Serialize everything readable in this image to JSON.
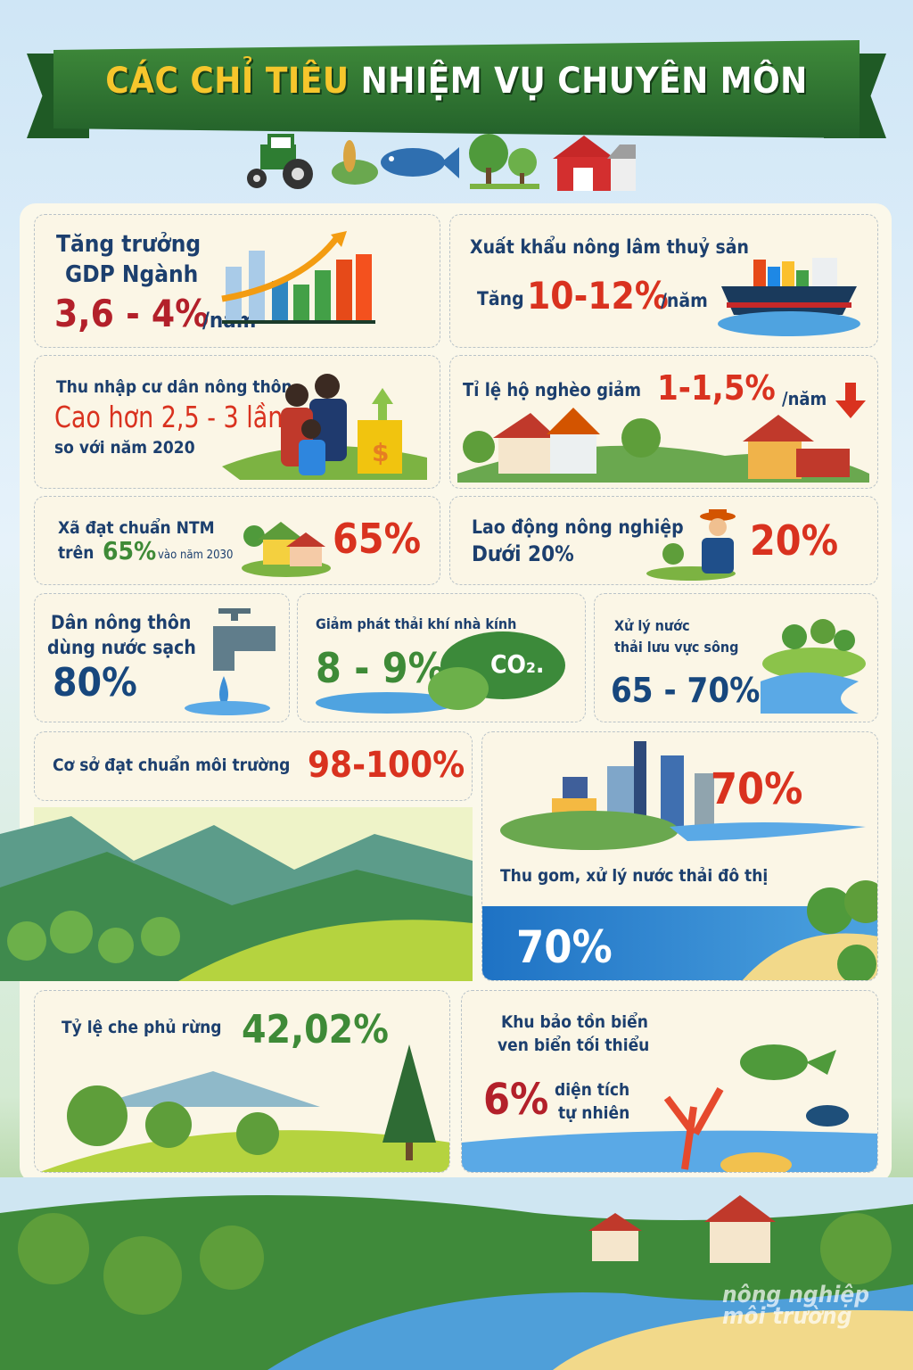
{
  "header": {
    "title_part1": "CÁC CHỈ TIÊU",
    "title_part2": "NHIỆM VỤ CHUYÊN MÔN",
    "icons": [
      "tractor-icon",
      "wheat-leaf-icon",
      "fish-icon",
      "trees-icon",
      "barn-icon"
    ]
  },
  "colors": {
    "banner": "#2f7a33",
    "title_yellow": "#f6c62c",
    "red": "#d9321f",
    "navy": "#1c3f6e",
    "green": "#3e8a37"
  },
  "cards": {
    "gdp": {
      "line1": "Tăng trưởng",
      "line2": "GDP Ngành",
      "value": "3,6 - 4%",
      "unit": "/năm"
    },
    "export": {
      "label": "Xuất khẩu nông lâm thuỷ sản",
      "prefix": "Tăng",
      "value": "10-12%",
      "unit": "/năm"
    },
    "income": {
      "label": "Thu nhập cư dân nông thôn",
      "value": "Cao hơn 2,5 - 3 lần",
      "note": "so với năm 2020"
    },
    "poverty": {
      "label": "Tỉ lệ hộ nghèo giảm",
      "value": "1-1,5%",
      "unit": "/năm"
    },
    "ntm": {
      "line1": "Xã đạt chuẩn NTM",
      "prefix": "trên",
      "value": "65%",
      "suffix": "vào năm 2030",
      "big": "65%"
    },
    "labor": {
      "line1": "Lao động nông nghiệp",
      "line2": "Dưới 20%",
      "big": "20%"
    },
    "water": {
      "line1": "Dân nông thôn",
      "line2": "dùng nước sạch",
      "value": "80%"
    },
    "emission": {
      "label": "Giảm phát thải khí nhà kính",
      "value": "8 - 9%",
      "co2": "CO₂."
    },
    "river": {
      "line1": "Xử lý nước",
      "line2": "thải lưu vực sông",
      "value": "65 - 70%"
    },
    "facility": {
      "label": "Cơ sở đạt chuẩn môi trường",
      "value": "98-100%"
    },
    "urban": {
      "value_top": "70%",
      "label": "Thu gom, xử lý nước thải đô thị",
      "value_bottom": "70%"
    },
    "forest": {
      "label": "Tỷ lệ che phủ rừng",
      "value": "42,02%"
    },
    "marine": {
      "line1": "Khu bảo tồn biển",
      "line2": "ven biển tối thiểu",
      "value": "6%",
      "unit1": "diện tích",
      "unit2": "tự nhiên"
    }
  },
  "watermark": "nông nghiệp môi trường"
}
